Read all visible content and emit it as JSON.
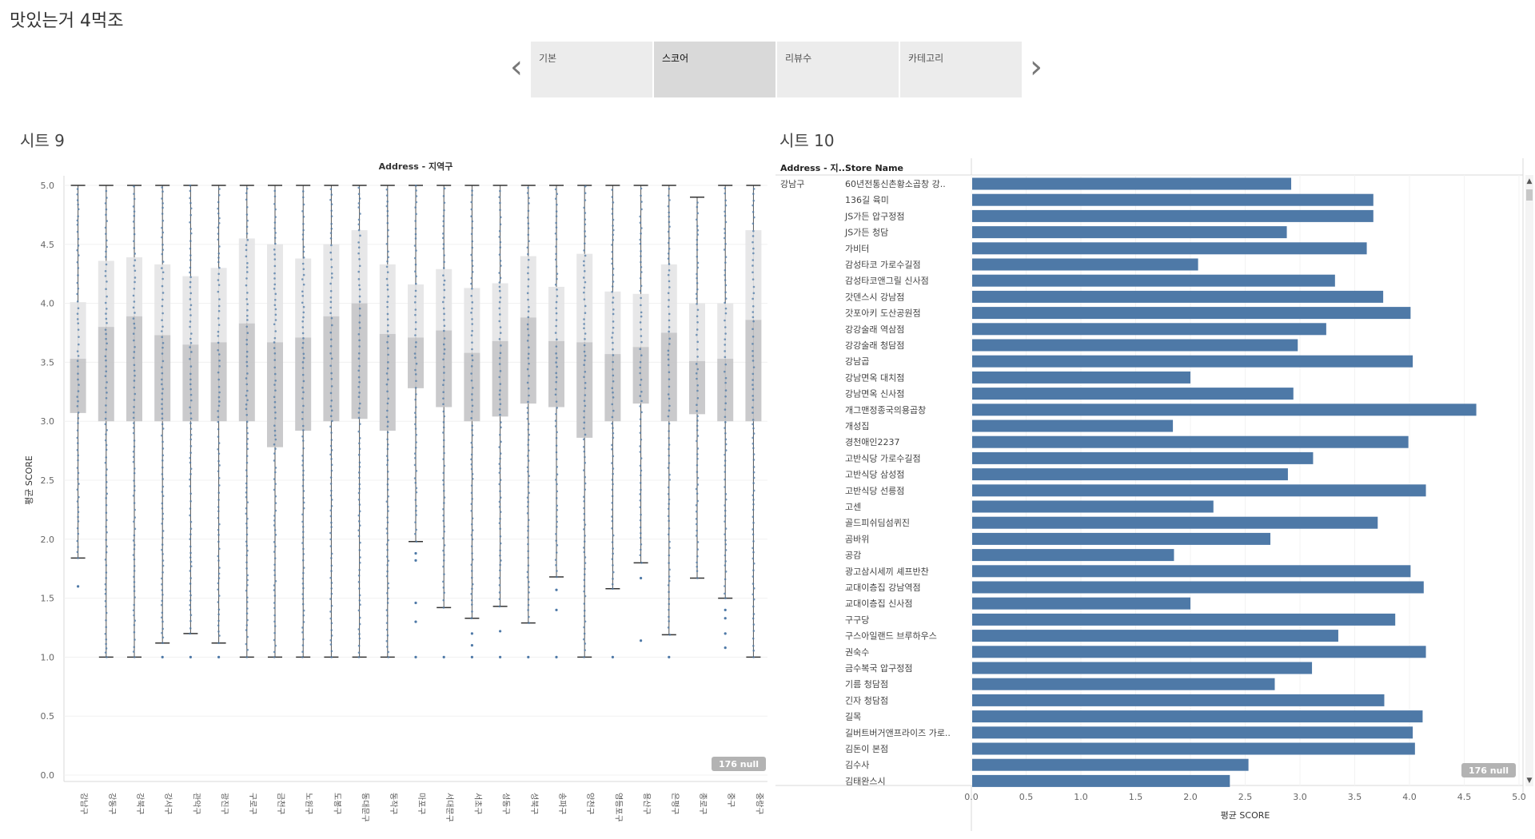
{
  "app": {
    "title": "맛있는거 4먹조"
  },
  "story": {
    "prev_icon": "chevron-left-icon",
    "next_icon": "chevron-right-icon",
    "tabs": [
      {
        "label": "기본",
        "active": false
      },
      {
        "label": "스코어",
        "active": true
      },
      {
        "label": "리뷰수",
        "active": false
      },
      {
        "label": "카테고리",
        "active": false
      }
    ]
  },
  "sheet9": {
    "title": "시트 9"
  },
  "sheet10": {
    "title": "시트 10"
  },
  "colors": {
    "mark": "#4e79a7",
    "box_upper": "#e4e4e6",
    "box_lower": "#c4c4c6",
    "null_badge": "#b3b3b3"
  },
  "chart_data": [
    {
      "type": "boxplot",
      "title": "Address - 지역구",
      "ylabel": "평균 SCORE",
      "ylim": [
        0,
        5
      ],
      "yticks": [
        0,
        0.5,
        1,
        1.5,
        2,
        2.5,
        3,
        3.5,
        4,
        4.5,
        5
      ],
      "null_badge": "176 null",
      "categories": [
        {
          "label": "강남구",
          "whisker_low": 1.84,
          "q1": 3.07,
          "median": 3.53,
          "q3": 4.01,
          "whisker_high": 5.0,
          "outliers": [
            1.6
          ]
        },
        {
          "label": "강동구",
          "whisker_low": 1.0,
          "q1": 3.0,
          "median": 3.8,
          "q3": 4.36,
          "whisker_high": 5.0,
          "outliers": []
        },
        {
          "label": "강북구",
          "whisker_low": 1.0,
          "q1": 3.0,
          "median": 3.89,
          "q3": 4.39,
          "whisker_high": 5.0,
          "outliers": []
        },
        {
          "label": "강서구",
          "whisker_low": 1.12,
          "q1": 3.0,
          "median": 3.73,
          "q3": 4.33,
          "whisker_high": 5.0,
          "outliers": [
            1.0
          ]
        },
        {
          "label": "관악구",
          "whisker_low": 1.2,
          "q1": 3.0,
          "median": 3.65,
          "q3": 4.23,
          "whisker_high": 5.0,
          "outliers": [
            1.0
          ]
        },
        {
          "label": "광진구",
          "whisker_low": 1.12,
          "q1": 3.0,
          "median": 3.67,
          "q3": 4.3,
          "whisker_high": 5.0,
          "outliers": [
            1.0
          ]
        },
        {
          "label": "구로구",
          "whisker_low": 1.0,
          "q1": 3.0,
          "median": 3.83,
          "q3": 4.55,
          "whisker_high": 5.0,
          "outliers": []
        },
        {
          "label": "금천구",
          "whisker_low": 1.0,
          "q1": 2.78,
          "median": 3.67,
          "q3": 4.5,
          "whisker_high": 5.0,
          "outliers": []
        },
        {
          "label": "노원구",
          "whisker_low": 1.0,
          "q1": 2.92,
          "median": 3.71,
          "q3": 4.38,
          "whisker_high": 5.0,
          "outliers": []
        },
        {
          "label": "도봉구",
          "whisker_low": 1.0,
          "q1": 3.0,
          "median": 3.89,
          "q3": 4.5,
          "whisker_high": 5.0,
          "outliers": []
        },
        {
          "label": "동대문구",
          "whisker_low": 1.0,
          "q1": 3.02,
          "median": 4.0,
          "q3": 4.62,
          "whisker_high": 5.0,
          "outliers": []
        },
        {
          "label": "동작구",
          "whisker_low": 1.0,
          "q1": 2.92,
          "median": 3.74,
          "q3": 4.33,
          "whisker_high": 5.0,
          "outliers": []
        },
        {
          "label": "마포구",
          "whisker_low": 1.98,
          "q1": 3.28,
          "median": 3.71,
          "q3": 4.16,
          "whisker_high": 5.0,
          "outliers": [
            1.88,
            1.82,
            1.46,
            1.3,
            1.0
          ]
        },
        {
          "label": "서대문구",
          "whisker_low": 1.42,
          "q1": 3.12,
          "median": 3.77,
          "q3": 4.29,
          "whisker_high": 5.0,
          "outliers": [
            1.0
          ]
        },
        {
          "label": "서초구",
          "whisker_low": 1.33,
          "q1": 3.0,
          "median": 3.58,
          "q3": 4.13,
          "whisker_high": 5.0,
          "outliers": [
            1.2,
            1.1,
            1.0
          ]
        },
        {
          "label": "성동구",
          "whisker_low": 1.43,
          "q1": 3.04,
          "median": 3.68,
          "q3": 4.17,
          "whisker_high": 5.0,
          "outliers": [
            1.22,
            1.0
          ]
        },
        {
          "label": "성북구",
          "whisker_low": 1.29,
          "q1": 3.15,
          "median": 3.88,
          "q3": 4.4,
          "whisker_high": 5.0,
          "outliers": [
            1.0
          ]
        },
        {
          "label": "송파구",
          "whisker_low": 1.68,
          "q1": 3.12,
          "median": 3.68,
          "q3": 4.14,
          "whisker_high": 5.0,
          "outliers": [
            1.57,
            1.4,
            1.0
          ]
        },
        {
          "label": "양천구",
          "whisker_low": 1.0,
          "q1": 2.86,
          "median": 3.67,
          "q3": 4.42,
          "whisker_high": 5.0,
          "outliers": []
        },
        {
          "label": "영등포구",
          "whisker_low": 1.58,
          "q1": 3.0,
          "median": 3.57,
          "q3": 4.1,
          "whisker_high": 5.0,
          "outliers": [
            1.0
          ]
        },
        {
          "label": "용산구",
          "whisker_low": 1.8,
          "q1": 3.15,
          "median": 3.63,
          "q3": 4.08,
          "whisker_high": 5.0,
          "outliers": [
            1.67,
            1.14
          ]
        },
        {
          "label": "은평구",
          "whisker_low": 1.19,
          "q1": 3.0,
          "median": 3.75,
          "q3": 4.33,
          "whisker_high": 5.0,
          "outliers": [
            1.0
          ]
        },
        {
          "label": "종로구",
          "whisker_low": 1.67,
          "q1": 3.06,
          "median": 3.51,
          "q3": 4.0,
          "whisker_high": 4.9,
          "outliers": []
        },
        {
          "label": "중구",
          "whisker_low": 1.5,
          "q1": 3.0,
          "median": 3.53,
          "q3": 4.0,
          "whisker_high": 5.0,
          "outliers": [
            1.4,
            1.33,
            1.2,
            1.08
          ]
        },
        {
          "label": "중랑구",
          "whisker_low": 1.0,
          "q1": 3.0,
          "median": 3.86,
          "q3": 4.62,
          "whisker_high": 5.0,
          "outliers": []
        }
      ]
    },
    {
      "type": "bar",
      "orientation": "horizontal",
      "column_headers": [
        "Address - 지..",
        "Store Name"
      ],
      "xlabel": "평균 SCORE",
      "xlim": [
        0,
        5
      ],
      "xticks": [
        0,
        0.5,
        1,
        1.5,
        2,
        2.5,
        3,
        3.5,
        4,
        4.5,
        5
      ],
      "null_badge": "176 null",
      "group": "강남구",
      "categories": [
        "60년전통신촌황소곱창 강..",
        "136길 육미",
        "JS가든 압구정점",
        "JS가든 청담",
        "가비터",
        "감성타코 가로수길점",
        "감성타코앤그릴 신사점",
        "갓덴스시 강남점",
        "갓포아키 도산공원점",
        "강강술래 역삼점",
        "강강술래 청담점",
        "강남곱",
        "강남면옥 대치점",
        "강남면옥 신사점",
        "개그맨정종국의용곱창",
        "개성집",
        "경천애인2237",
        "고반식당 가로수길점",
        "고반식당 삼성점",
        "고반식당 선릉점",
        "고센",
        "골드피쉬딤섬퀴진",
        "곰바위",
        "공감",
        "광고삼시세끼 셰프반찬",
        "교대이층집 강남역점",
        "교대이층집 신사점",
        "구구당",
        "구스아일랜드 브루하우스",
        "권숙수",
        "금수복국 압구정점",
        "기름 청담점",
        "긴자 청담점",
        "길목",
        "길버트버거앤프라이즈 가로..",
        "김돈이 본점",
        "김수사",
        "김태완스시"
      ],
      "values": [
        2.92,
        3.67,
        3.67,
        2.88,
        3.61,
        2.07,
        3.32,
        3.76,
        4.01,
        3.24,
        2.98,
        4.03,
        2.0,
        2.94,
        4.61,
        1.84,
        3.99,
        3.12,
        2.89,
        4.15,
        2.21,
        3.71,
        2.73,
        1.85,
        4.01,
        4.13,
        2.0,
        3.87,
        3.35,
        4.15,
        3.11,
        2.77,
        3.77,
        4.12,
        4.03,
        4.05,
        2.53,
        2.36
      ]
    }
  ]
}
